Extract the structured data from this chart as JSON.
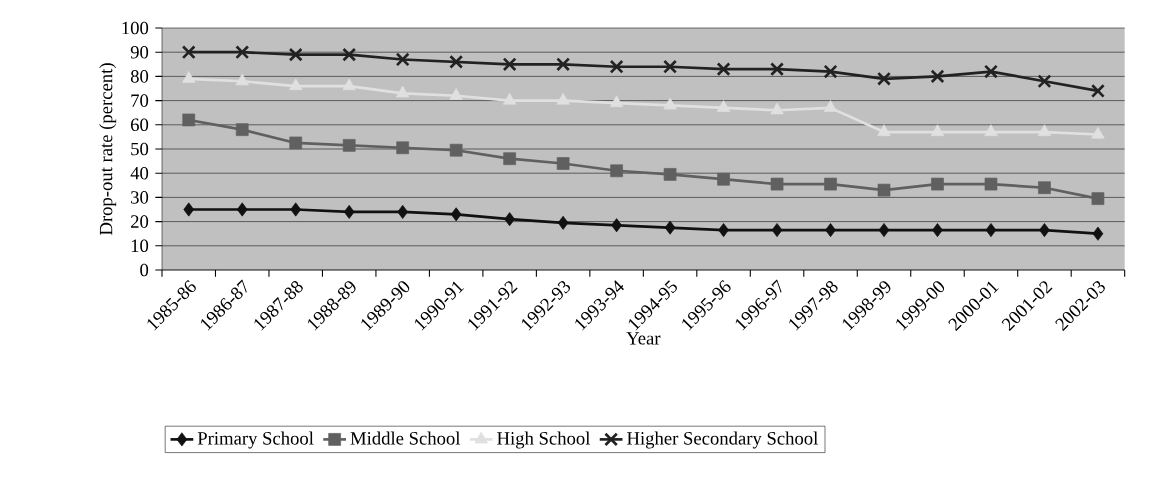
{
  "chart_data": {
    "type": "line",
    "xlabel": "Year",
    "ylabel": "Drop-out rate (percent)",
    "categories": [
      "1985-86",
      "1986-87",
      "1987-88",
      "1988-89",
      "1989-90",
      "1990-91",
      "1991-92",
      "1992-93",
      "1993-94",
      "1994-95",
      "1995-96",
      "1996-97",
      "1997-98",
      "1998-99",
      "1999-00",
      "2000-01",
      "2001-02",
      "2002-03"
    ],
    "series": [
      {
        "name": "Primary School",
        "color": "#111111",
        "marker": "diamond",
        "values": [
          25,
          25,
          25,
          24,
          24,
          23,
          21,
          19.5,
          18.5,
          17.5,
          16.5,
          16.5,
          16.5,
          16.5,
          16.5,
          16.5,
          16.5,
          15
        ]
      },
      {
        "name": "Middle School",
        "color": "#606060",
        "marker": "square",
        "values": [
          62,
          58,
          52.5,
          51.5,
          50.5,
          49.5,
          46,
          44,
          41,
          39.5,
          37.5,
          35.5,
          35.5,
          33,
          35.5,
          35.5,
          34,
          29.5
        ]
      },
      {
        "name": "High School",
        "color": "#e0e0e0",
        "marker": "triangle",
        "values": [
          79,
          78,
          76,
          76,
          73,
          72,
          70,
          70,
          69,
          68,
          67,
          66,
          67,
          57,
          57,
          57,
          57,
          56
        ]
      },
      {
        "name": "Higher Secondary School",
        "color": "#222222",
        "marker": "cross",
        "values": [
          90,
          90,
          89,
          89,
          87,
          86,
          85,
          85,
          84,
          84,
          83,
          83,
          82,
          79,
          80,
          82,
          78,
          74
        ]
      }
    ],
    "ylim": [
      0,
      100
    ],
    "yticks": [
      0,
      10,
      20,
      30,
      40,
      50,
      60,
      70,
      80,
      90,
      100
    ],
    "grid": "y",
    "legend": "bottom",
    "line_style": "solid"
  }
}
